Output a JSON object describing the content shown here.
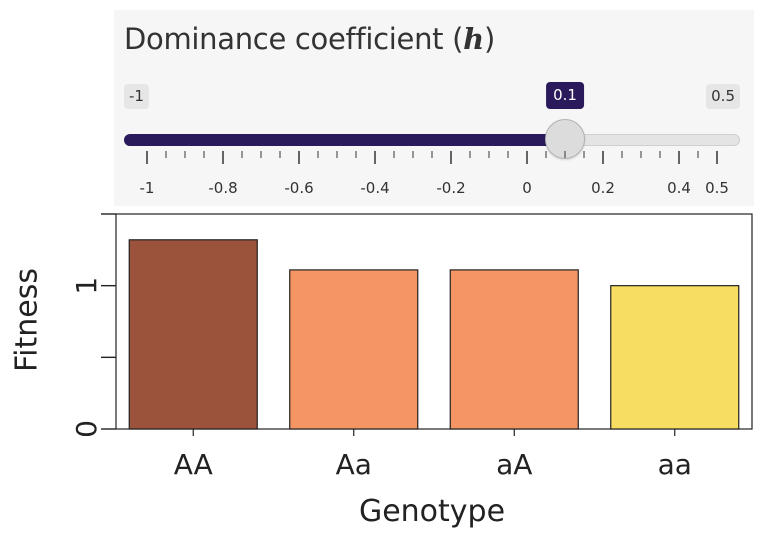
{
  "slider": {
    "label": "Dominance coefficient",
    "symbol": "h",
    "min_label": "-1",
    "max_label": "0.5",
    "value": 0.1,
    "value_label": "0.1",
    "min": -1,
    "max": 0.5,
    "tick_labels": [
      "-1",
      "-0.8",
      "-0.6",
      "-0.4",
      "-0.2",
      "0",
      "0.2",
      "0.4",
      "0.5"
    ],
    "tick_values": [
      -1,
      -0.8,
      -0.6,
      -0.4,
      -0.2,
      0,
      0.2,
      0.4,
      0.5
    ],
    "accent_color": "#2b1a5b"
  },
  "chart_data": {
    "type": "bar",
    "title": "",
    "xlabel": "Genotype",
    "ylabel": "Fitness",
    "categories": [
      "AA",
      "Aa",
      "aA",
      "aa"
    ],
    "values": [
      1.32,
      1.11,
      1.11,
      1.0
    ],
    "colors": [
      "#9b533c",
      "#f59563",
      "#f59563",
      "#f7de62"
    ],
    "ylim": [
      0,
      1.5
    ],
    "yticks": [
      0,
      0.5,
      1,
      1.5
    ],
    "ytick_labels": [
      "0",
      "",
      "1",
      ""
    ],
    "grid": false,
    "legend": "none"
  }
}
